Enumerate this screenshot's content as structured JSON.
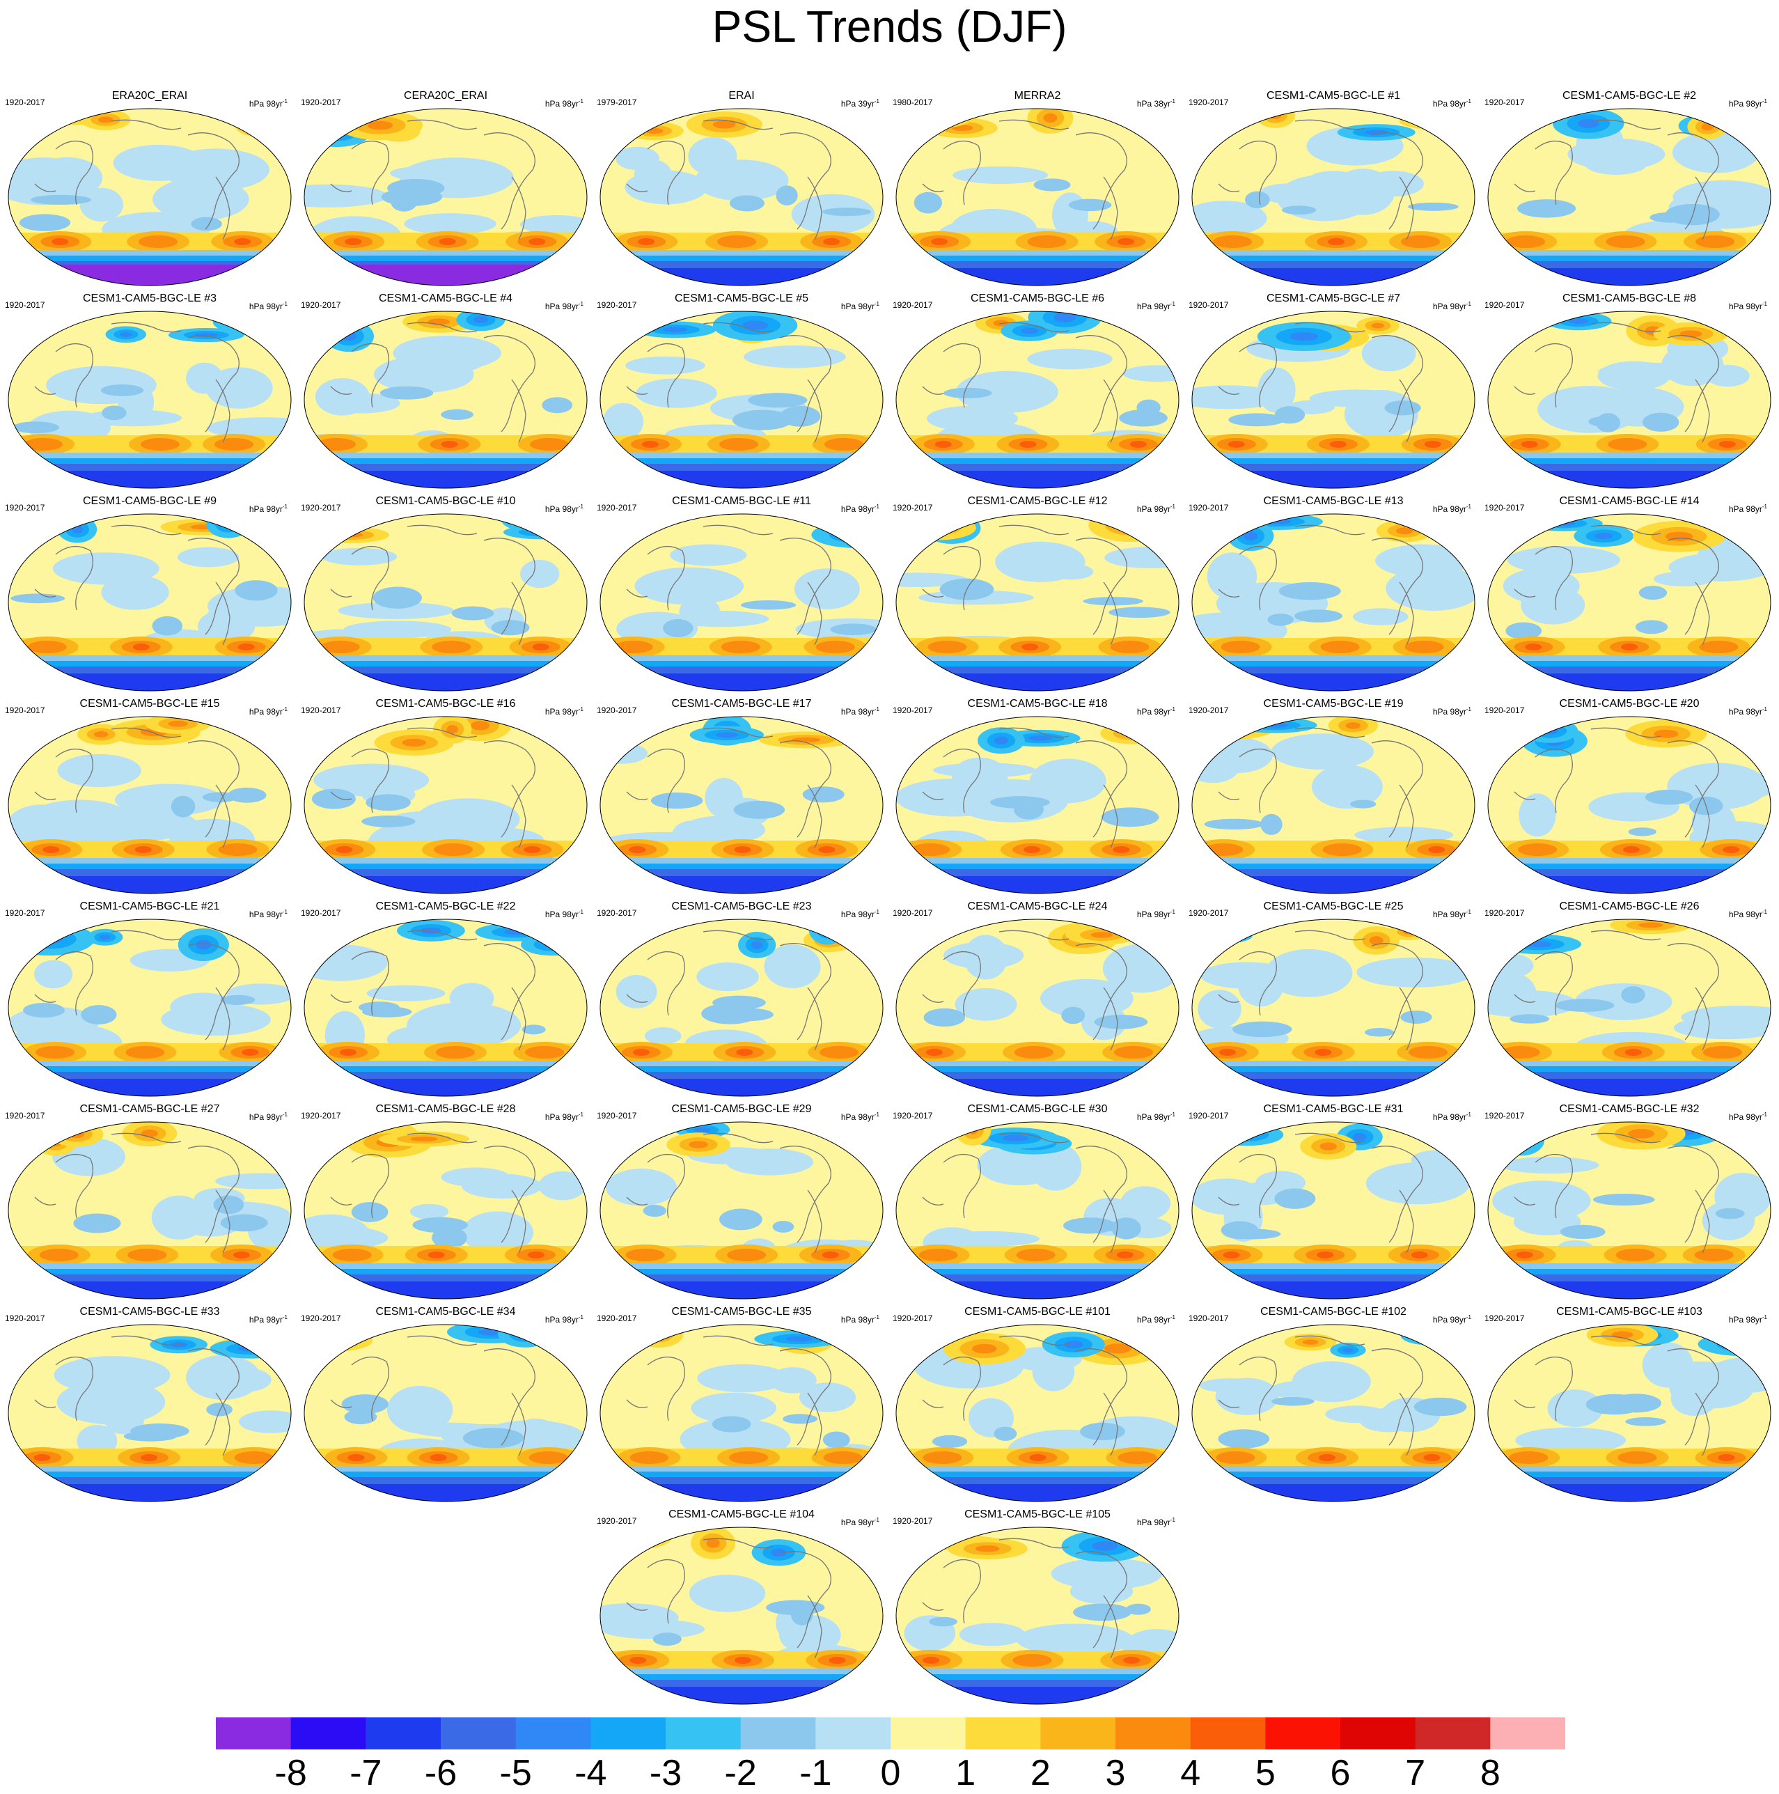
{
  "title": "PSL Trends (DJF)",
  "units_prefix": "hPa",
  "units_suffix": "yr",
  "units_exponent": "-1",
  "panels": [
    {
      "title": "ERA20C_ERAI",
      "period": "1920-2017",
      "years": "98"
    },
    {
      "title": "CERA20C_ERAI",
      "period": "1920-2017",
      "years": "98"
    },
    {
      "title": "ERAI",
      "period": "1979-2017",
      "years": "39"
    },
    {
      "title": "MERRA2",
      "period": "1980-2017",
      "years": "38"
    },
    {
      "title": "CESM1-CAM5-BGC-LE #1",
      "period": "1920-2017",
      "years": "98"
    },
    {
      "title": "CESM1-CAM5-BGC-LE #2",
      "period": "1920-2017",
      "years": "98"
    },
    {
      "title": "CESM1-CAM5-BGC-LE #3",
      "period": "1920-2017",
      "years": "98"
    },
    {
      "title": "CESM1-CAM5-BGC-LE #4",
      "period": "1920-2017",
      "years": "98"
    },
    {
      "title": "CESM1-CAM5-BGC-LE #5",
      "period": "1920-2017",
      "years": "98"
    },
    {
      "title": "CESM1-CAM5-BGC-LE #6",
      "period": "1920-2017",
      "years": "98"
    },
    {
      "title": "CESM1-CAM5-BGC-LE #7",
      "period": "1920-2017",
      "years": "98"
    },
    {
      "title": "CESM1-CAM5-BGC-LE #8",
      "period": "1920-2017",
      "years": "98"
    },
    {
      "title": "CESM1-CAM5-BGC-LE #9",
      "period": "1920-2017",
      "years": "98"
    },
    {
      "title": "CESM1-CAM5-BGC-LE #10",
      "period": "1920-2017",
      "years": "98"
    },
    {
      "title": "CESM1-CAM5-BGC-LE #11",
      "period": "1920-2017",
      "years": "98"
    },
    {
      "title": "CESM1-CAM5-BGC-LE #12",
      "period": "1920-2017",
      "years": "98"
    },
    {
      "title": "CESM1-CAM5-BGC-LE #13",
      "period": "1920-2017",
      "years": "98"
    },
    {
      "title": "CESM1-CAM5-BGC-LE #14",
      "period": "1920-2017",
      "years": "98"
    },
    {
      "title": "CESM1-CAM5-BGC-LE #15",
      "period": "1920-2017",
      "years": "98"
    },
    {
      "title": "CESM1-CAM5-BGC-LE #16",
      "period": "1920-2017",
      "years": "98"
    },
    {
      "title": "CESM1-CAM5-BGC-LE #17",
      "period": "1920-2017",
      "years": "98"
    },
    {
      "title": "CESM1-CAM5-BGC-LE #18",
      "period": "1920-2017",
      "years": "98"
    },
    {
      "title": "CESM1-CAM5-BGC-LE #19",
      "period": "1920-2017",
      "years": "98"
    },
    {
      "title": "CESM1-CAM5-BGC-LE #20",
      "period": "1920-2017",
      "years": "98"
    },
    {
      "title": "CESM1-CAM5-BGC-LE #21",
      "period": "1920-2017",
      "years": "98"
    },
    {
      "title": "CESM1-CAM5-BGC-LE #22",
      "period": "1920-2017",
      "years": "98"
    },
    {
      "title": "CESM1-CAM5-BGC-LE #23",
      "period": "1920-2017",
      "years": "98"
    },
    {
      "title": "CESM1-CAM5-BGC-LE #24",
      "period": "1920-2017",
      "years": "98"
    },
    {
      "title": "CESM1-CAM5-BGC-LE #25",
      "period": "1920-2017",
      "years": "98"
    },
    {
      "title": "CESM1-CAM5-BGC-LE #26",
      "period": "1920-2017",
      "years": "98"
    },
    {
      "title": "CESM1-CAM5-BGC-LE #27",
      "period": "1920-2017",
      "years": "98"
    },
    {
      "title": "CESM1-CAM5-BGC-LE #28",
      "period": "1920-2017",
      "years": "98"
    },
    {
      "title": "CESM1-CAM5-BGC-LE #29",
      "period": "1920-2017",
      "years": "98"
    },
    {
      "title": "CESM1-CAM5-BGC-LE #30",
      "period": "1920-2017",
      "years": "98"
    },
    {
      "title": "CESM1-CAM5-BGC-LE #31",
      "period": "1920-2017",
      "years": "98"
    },
    {
      "title": "CESM1-CAM5-BGC-LE #32",
      "period": "1920-2017",
      "years": "98"
    },
    {
      "title": "CESM1-CAM5-BGC-LE #33",
      "period": "1920-2017",
      "years": "98"
    },
    {
      "title": "CESM1-CAM5-BGC-LE #34",
      "period": "1920-2017",
      "years": "98"
    },
    {
      "title": "CESM1-CAM5-BGC-LE #35",
      "period": "1920-2017",
      "years": "98"
    },
    {
      "title": "CESM1-CAM5-BGC-LE #101",
      "period": "1920-2017",
      "years": "98"
    },
    {
      "title": "CESM1-CAM5-BGC-LE #102",
      "period": "1920-2017",
      "years": "98"
    },
    {
      "title": "CESM1-CAM5-BGC-LE #103",
      "period": "1920-2017",
      "years": "98"
    },
    {
      "title": "CESM1-CAM5-BGC-LE #104",
      "period": "1920-2017",
      "years": "98"
    },
    {
      "title": "CESM1-CAM5-BGC-LE #105",
      "period": "1920-2017",
      "years": "98"
    }
  ],
  "colorbar": {
    "labels": [
      "-8",
      "-7",
      "-6",
      "-5",
      "-4",
      "-3",
      "-2",
      "-1",
      "0",
      "1",
      "2",
      "3",
      "4",
      "5",
      "6",
      "7",
      "8"
    ],
    "colors": [
      "#8a2be2",
      "#2b0cf5",
      "#1f3bef",
      "#3a6ae6",
      "#2f88f5",
      "#14a6f7",
      "#36c2f2",
      "#8cc8ee",
      "#b8e0f4",
      "#fef69e",
      "#fcdb3a",
      "#f9b51a",
      "#fb8b0e",
      "#fb5e08",
      "#fb1203",
      "#de0504",
      "#d02828",
      "#fcb0b4"
    ]
  }
}
